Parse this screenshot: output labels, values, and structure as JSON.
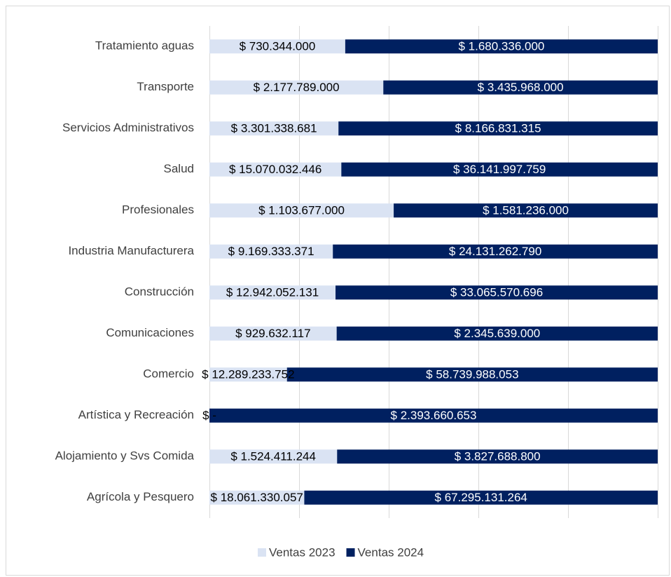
{
  "chart_data": {
    "type": "bar",
    "stacking": "percent",
    "orientation": "horizontal",
    "categories": [
      "Tratamiento aguas",
      "Transporte",
      "Servicios Administrativos",
      "Salud",
      "Profesionales",
      "Industria Manufacturera",
      "Construcción",
      "Comunicaciones",
      "Comercio",
      "Artística y Recreación",
      "Alojamiento y Svs Comida",
      "Agrícola y Pesquero"
    ],
    "series": [
      {
        "name": "Ventas 2023",
        "color": "#dae3f3",
        "values": [
          730344000,
          2177789000,
          3301338681,
          15070032446,
          1103677000,
          9169333371,
          12942052131,
          929632117,
          12289233752,
          0,
          1524411244,
          18061330057
        ],
        "value_labels": [
          "$ 730.344.000",
          "$ 2.177.789.000",
          "$ 3.301.338.681",
          "$ 15.070.032.446",
          "$ 1.103.677.000",
          "$ 9.169.333.371",
          "$ 12.942.052.131",
          "$ 929.632.117",
          "$ 12.289.233.752",
          "$ -",
          "$ 1.524.411.244",
          "$ 18.061.330.057"
        ]
      },
      {
        "name": "Ventas 2024",
        "color": "#002060",
        "values": [
          1680336000,
          3435968000,
          8166831315,
          36141997759,
          1581236000,
          24131262790,
          33065570696,
          2345639000,
          58739988053,
          2393660653,
          3827688800,
          67295131264
        ],
        "value_labels": [
          "$ 1.680.336.000",
          "$ 3.435.968.000",
          "$ 8.166.831.315",
          "$ 36.141.997.759",
          "$ 1.581.236.000",
          "$ 24.131.262.790",
          "$ 33.065.570.696",
          "$ 2.345.639.000",
          "$ 58.739.988.053",
          "$ 2.393.660.653",
          "$ 3.827.688.800",
          "$ 67.295.131.264"
        ]
      }
    ],
    "xlim": [
      0,
      100
    ],
    "xticks": [
      0,
      20,
      40,
      60,
      80,
      100
    ],
    "grid": true,
    "legend": "bottom"
  }
}
